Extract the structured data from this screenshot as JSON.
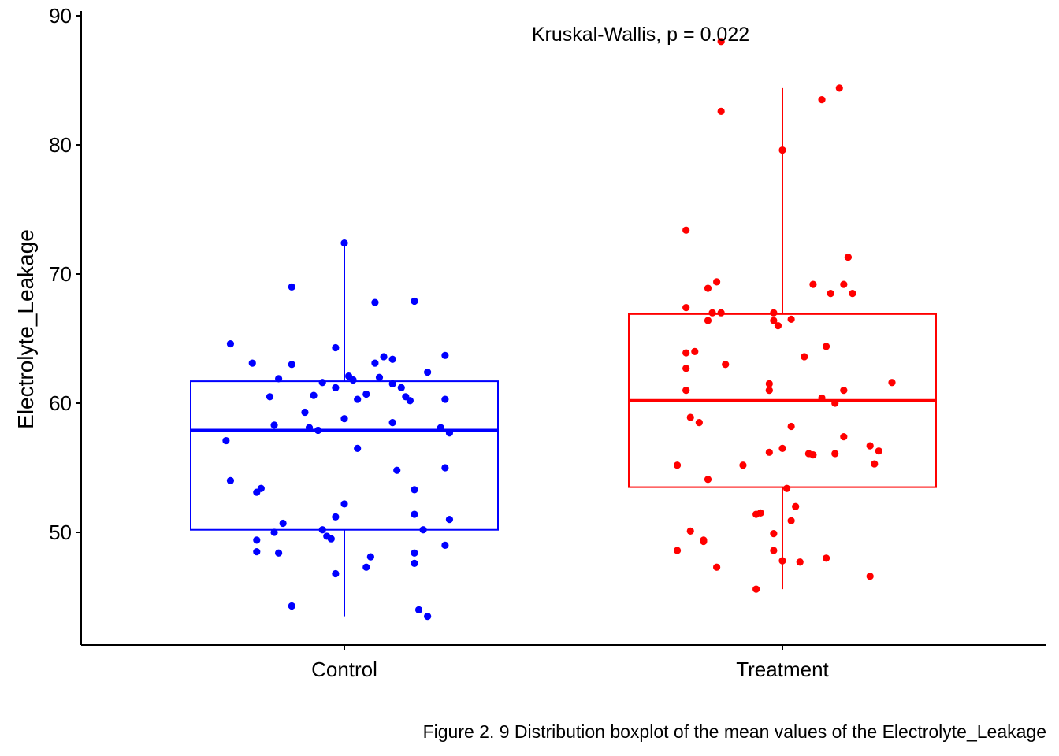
{
  "chart_data": {
    "type": "box",
    "title": "",
    "xlabel": "",
    "ylabel": "Electrolyte_Leakage",
    "ylim": [
      41.3,
      90.2
    ],
    "yticks": [
      50,
      60,
      70,
      80,
      90
    ],
    "categories": [
      "Control",
      "Treatment"
    ],
    "annotation": "Kruskal-Wallis, p = 0.022",
    "colors": {
      "Control": "#0000ff",
      "Treatment": "#ff0000"
    },
    "series": [
      {
        "category": "Control",
        "box": {
          "min": 43.5,
          "q1": 50.2,
          "median": 57.9,
          "q3": 61.7,
          "max": 72.4
        },
        "points": [
          [
            -0.26,
            64.6
          ],
          [
            -0.21,
            63.1
          ],
          [
            -0.15,
            61.9
          ],
          [
            -0.12,
            63.0
          ],
          [
            -0.17,
            60.5
          ],
          [
            -0.16,
            58.3
          ],
          [
            -0.27,
            57.1
          ],
          [
            -0.26,
            54.0
          ],
          [
            -0.19,
            53.4
          ],
          [
            -0.2,
            53.1
          ],
          [
            -0.14,
            50.7
          ],
          [
            -0.16,
            50.0
          ],
          [
            -0.2,
            49.4
          ],
          [
            -0.2,
            48.5
          ],
          [
            -0.15,
            48.4
          ],
          [
            -0.12,
            69.0
          ],
          [
            -0.12,
            44.3
          ],
          [
            0.0,
            72.4
          ],
          [
            -0.02,
            64.3
          ],
          [
            0.01,
            62.1
          ],
          [
            -0.05,
            61.6
          ],
          [
            0.02,
            61.8
          ],
          [
            -0.02,
            61.2
          ],
          [
            -0.07,
            60.6
          ],
          [
            0.05,
            60.7
          ],
          [
            0.03,
            60.3
          ],
          [
            -0.09,
            59.3
          ],
          [
            -0.08,
            58.1
          ],
          [
            -0.06,
            57.9
          ],
          [
            0.0,
            58.8
          ],
          [
            0.03,
            56.5
          ],
          [
            0.0,
            52.2
          ],
          [
            -0.02,
            51.2
          ],
          [
            -0.05,
            50.2
          ],
          [
            -0.04,
            49.7
          ],
          [
            -0.03,
            49.5
          ],
          [
            0.06,
            48.1
          ],
          [
            0.05,
            47.3
          ],
          [
            -0.02,
            46.8
          ],
          [
            0.07,
            67.8
          ],
          [
            0.09,
            63.6
          ],
          [
            0.11,
            63.4
          ],
          [
            0.07,
            63.1
          ],
          [
            0.08,
            62.0
          ],
          [
            0.11,
            61.5
          ],
          [
            0.13,
            61.2
          ],
          [
            0.14,
            60.5
          ],
          [
            0.15,
            60.2
          ],
          [
            0.11,
            58.5
          ],
          [
            0.12,
            54.8
          ],
          [
            0.16,
            53.3
          ],
          [
            0.16,
            51.4
          ],
          [
            0.18,
            50.2
          ],
          [
            0.16,
            47.6
          ],
          [
            0.16,
            48.4
          ],
          [
            0.17,
            44.0
          ],
          [
            0.19,
            43.5
          ],
          [
            0.16,
            67.9
          ],
          [
            0.19,
            62.4
          ],
          [
            0.23,
            63.7
          ],
          [
            0.23,
            60.3
          ],
          [
            0.24,
            57.7
          ],
          [
            0.22,
            58.1
          ],
          [
            0.23,
            55.0
          ],
          [
            0.24,
            51.0
          ],
          [
            0.23,
            49.0
          ]
        ]
      },
      {
        "category": "Treatment",
        "box": {
          "min": 45.6,
          "q1": 53.5,
          "median": 60.2,
          "q3": 66.9,
          "max": 84.4
        },
        "points": [
          [
            -0.14,
            88.0
          ],
          [
            -0.14,
            82.6
          ],
          [
            0.0,
            79.6
          ],
          [
            0.09,
            83.5
          ],
          [
            0.13,
            84.4
          ],
          [
            -0.22,
            73.4
          ],
          [
            -0.17,
            68.9
          ],
          [
            -0.15,
            69.4
          ],
          [
            -0.22,
            67.4
          ],
          [
            -0.16,
            67.0
          ],
          [
            -0.14,
            67.0
          ],
          [
            -0.17,
            66.4
          ],
          [
            -0.02,
            67.0
          ],
          [
            -0.02,
            66.4
          ],
          [
            -0.01,
            66.0
          ],
          [
            0.02,
            66.5
          ],
          [
            0.07,
            69.2
          ],
          [
            0.14,
            69.2
          ],
          [
            0.11,
            68.5
          ],
          [
            0.16,
            68.5
          ],
          [
            0.15,
            71.3
          ],
          [
            -0.22,
            63.9
          ],
          [
            -0.2,
            64.0
          ],
          [
            -0.22,
            62.7
          ],
          [
            -0.13,
            63.0
          ],
          [
            0.05,
            63.6
          ],
          [
            0.1,
            64.4
          ],
          [
            -0.22,
            61.0
          ],
          [
            -0.03,
            61.5
          ],
          [
            -0.03,
            61.0
          ],
          [
            0.09,
            60.4
          ],
          [
            0.12,
            60.0
          ],
          [
            0.14,
            61.0
          ],
          [
            0.25,
            61.6
          ],
          [
            -0.21,
            58.9
          ],
          [
            -0.19,
            58.5
          ],
          [
            0.02,
            58.2
          ],
          [
            -0.17,
            54.1
          ],
          [
            -0.24,
            55.2
          ],
          [
            -0.09,
            55.2
          ],
          [
            -0.03,
            56.2
          ],
          [
            0.0,
            56.5
          ],
          [
            0.06,
            56.1
          ],
          [
            0.07,
            56.0
          ],
          [
            0.12,
            56.1
          ],
          [
            0.14,
            57.4
          ],
          [
            0.2,
            56.7
          ],
          [
            0.22,
            56.3
          ],
          [
            0.21,
            55.3
          ],
          [
            0.01,
            53.4
          ],
          [
            0.03,
            52.0
          ],
          [
            -0.06,
            51.4
          ],
          [
            -0.05,
            51.5
          ],
          [
            0.02,
            50.9
          ],
          [
            -0.02,
            49.9
          ],
          [
            -0.21,
            50.1
          ],
          [
            -0.18,
            49.4
          ],
          [
            -0.18,
            49.3
          ],
          [
            -0.24,
            48.6
          ],
          [
            -0.02,
            48.6
          ],
          [
            0.0,
            47.8
          ],
          [
            0.04,
            47.7
          ],
          [
            0.1,
            48.0
          ],
          [
            -0.15,
            47.3
          ],
          [
            -0.06,
            45.6
          ],
          [
            0.2,
            46.6
          ]
        ]
      }
    ]
  },
  "caption": "Figure 2. 9 Distribution boxplot of the mean values of the Electrolyte_Leakage"
}
